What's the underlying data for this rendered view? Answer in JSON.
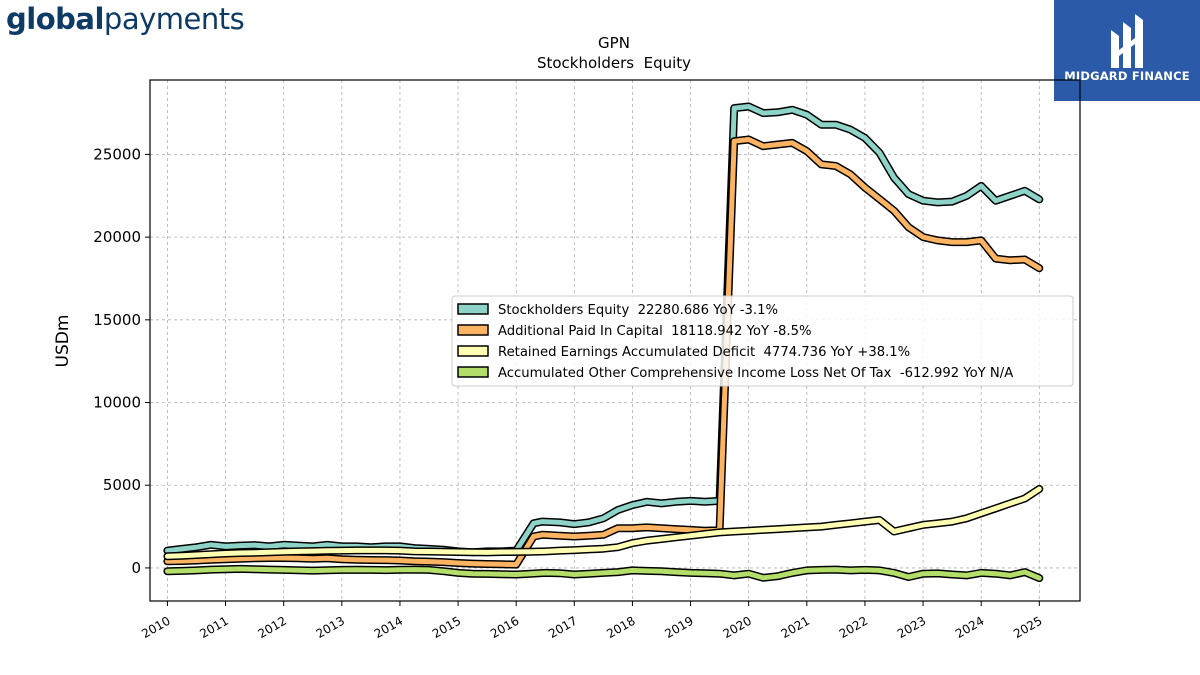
{
  "branding": {
    "company_logo_bold": "global",
    "company_logo_light": "payments",
    "provider_name": "MIDGARD FINANCE"
  },
  "chart_data": {
    "type": "line",
    "title": "GPN",
    "subtitle": "Stockholders  Equity",
    "xlabel": "",
    "ylabel": "USDm",
    "xlim": [
      2009.7,
      2025.7
    ],
    "ylim": [
      -2000,
      29500
    ],
    "xticks": [
      2010,
      2011,
      2012,
      2013,
      2014,
      2015,
      2016,
      2017,
      2018,
      2019,
      2020,
      2021,
      2022,
      2023,
      2024,
      2025
    ],
    "yticks": [
      0,
      5000,
      10000,
      15000,
      20000,
      25000
    ],
    "grid": true,
    "legend_position": "center-right",
    "series": [
      {
        "name": "Stockholders Equity",
        "legend": "Stockholders Equity  22280.686 YoY -3.1%",
        "color": "#8dd3c7",
        "x": [
          2010.0,
          2010.25,
          2010.5,
          2010.75,
          2011.0,
          2011.25,
          2011.5,
          2011.75,
          2012.0,
          2012.25,
          2012.5,
          2012.75,
          2013.0,
          2013.25,
          2013.5,
          2013.75,
          2014.0,
          2014.25,
          2014.5,
          2014.75,
          2015.0,
          2015.25,
          2015.5,
          2015.75,
          2016.0,
          2016.3,
          2016.45,
          2016.75,
          2017.0,
          2017.25,
          2017.5,
          2017.75,
          2018.0,
          2018.25,
          2018.5,
          2018.75,
          2019.0,
          2019.25,
          2019.5,
          2019.75,
          2020.0,
          2020.25,
          2020.5,
          2020.75,
          2021.0,
          2021.25,
          2021.5,
          2021.75,
          2022.0,
          2022.25,
          2022.5,
          2022.75,
          2023.0,
          2023.25,
          2023.5,
          2023.75,
          2024.0,
          2024.25,
          2024.5,
          2024.75,
          2025.0
        ],
        "values": [
          1050,
          1150,
          1250,
          1400,
          1300,
          1350,
          1380,
          1300,
          1400,
          1350,
          1300,
          1400,
          1300,
          1300,
          1250,
          1300,
          1300,
          1200,
          1150,
          1100,
          1000,
          950,
          1000,
          1000,
          1050,
          2700,
          2800,
          2750,
          2650,
          2750,
          3000,
          3500,
          3800,
          4000,
          3900,
          4000,
          4050,
          4000,
          4050,
          27800,
          27900,
          27500,
          27550,
          27700,
          27400,
          26800,
          26800,
          26500,
          26000,
          25100,
          23600,
          22600,
          22200,
          22100,
          22150,
          22500,
          23100,
          22200,
          22500,
          22800,
          22280
        ]
      },
      {
        "name": "Additional Paid In Capital",
        "legend": "Additional Paid In Capital  18118.942 YoY -8.5%",
        "color": "#fdb462",
        "x": [
          2010.0,
          2010.25,
          2010.5,
          2010.75,
          2011.0,
          2011.25,
          2011.5,
          2011.75,
          2012.0,
          2012.25,
          2012.5,
          2012.75,
          2013.0,
          2013.25,
          2013.5,
          2013.75,
          2014.0,
          2014.25,
          2014.5,
          2014.75,
          2015.0,
          2015.25,
          2015.5,
          2015.75,
          2016.0,
          2016.3,
          2016.45,
          2016.75,
          2017.0,
          2017.25,
          2017.5,
          2017.75,
          2018.0,
          2018.25,
          2018.5,
          2018.75,
          2019.0,
          2019.25,
          2019.5,
          2019.75,
          2020.0,
          2020.25,
          2020.5,
          2020.75,
          2021.0,
          2021.25,
          2021.5,
          2021.75,
          2022.0,
          2022.25,
          2022.5,
          2022.75,
          2023.0,
          2023.25,
          2023.5,
          2023.75,
          2024.0,
          2024.25,
          2024.5,
          2024.75,
          2025.0
        ],
        "values": [
          400,
          420,
          450,
          500,
          520,
          550,
          580,
          600,
          600,
          580,
          560,
          580,
          520,
          500,
          480,
          470,
          450,
          400,
          380,
          350,
          300,
          260,
          240,
          220,
          200,
          1900,
          2000,
          1950,
          1900,
          1950,
          2000,
          2400,
          2400,
          2450,
          2400,
          2350,
          2300,
          2250,
          2300,
          25800,
          25900,
          25500,
          25600,
          25700,
          25200,
          24400,
          24300,
          23800,
          23000,
          22300,
          21600,
          20600,
          20000,
          19800,
          19700,
          19700,
          19800,
          18700,
          18600,
          18650,
          18119
        ]
      },
      {
        "name": "Retained Earnings Accumulated Deficit",
        "legend": "Retained Earnings Accumulated Deficit  4774.736 YoY +38.1%",
        "color": "#ffffb3",
        "x": [
          2010.0,
          2010.25,
          2010.5,
          2010.75,
          2011.0,
          2011.25,
          2011.5,
          2011.75,
          2012.0,
          2012.25,
          2012.5,
          2012.75,
          2013.0,
          2013.25,
          2013.5,
          2013.75,
          2014.0,
          2014.25,
          2014.5,
          2014.75,
          2015.0,
          2015.25,
          2015.5,
          2015.75,
          2016.0,
          2016.25,
          2016.5,
          2016.75,
          2017.0,
          2017.25,
          2017.5,
          2017.75,
          2018.0,
          2018.25,
          2018.5,
          2018.75,
          2019.0,
          2019.25,
          2019.5,
          2019.75,
          2020.0,
          2020.25,
          2020.5,
          2020.75,
          2021.0,
          2021.25,
          2021.5,
          2021.75,
          2022.0,
          2022.25,
          2022.5,
          2022.75,
          2023.0,
          2023.25,
          2023.5,
          2023.75,
          2024.0,
          2024.25,
          2024.5,
          2024.75,
          2025.0
        ],
        "values": [
          700,
          730,
          780,
          830,
          870,
          900,
          920,
          950,
          980,
          1000,
          1020,
          1040,
          1050,
          1060,
          1060,
          1060,
          1050,
          1000,
          990,
          980,
          960,
          950,
          940,
          960,
          970,
          980,
          1000,
          1050,
          1080,
          1120,
          1160,
          1250,
          1500,
          1650,
          1750,
          1850,
          1950,
          2050,
          2150,
          2200,
          2250,
          2300,
          2350,
          2400,
          2450,
          2500,
          2600,
          2700,
          2800,
          2900,
          2200,
          2400,
          2600,
          2700,
          2800,
          3000,
          3300,
          3600,
          3900,
          4200,
          4775
        ]
      },
      {
        "name": "Accumulated Other Comprehensive Income Loss Net Of Tax",
        "legend": "Accumulated Other Comprehensive Income Loss Net Of Tax  -612.992 YoY N/A",
        "color": "#b3de69",
        "x": [
          2010.0,
          2010.25,
          2010.5,
          2010.75,
          2011.0,
          2011.25,
          2011.5,
          2011.75,
          2012.0,
          2012.25,
          2012.5,
          2012.75,
          2013.0,
          2013.25,
          2013.5,
          2013.75,
          2014.0,
          2014.25,
          2014.5,
          2014.75,
          2015.0,
          2015.25,
          2015.5,
          2015.75,
          2016.0,
          2016.25,
          2016.5,
          2016.75,
          2017.0,
          2017.25,
          2017.5,
          2017.75,
          2018.0,
          2018.25,
          2018.5,
          2018.75,
          2019.0,
          2019.25,
          2019.5,
          2019.75,
          2020.0,
          2020.25,
          2020.5,
          2020.75,
          2021.0,
          2021.25,
          2021.5,
          2021.75,
          2022.0,
          2022.25,
          2022.5,
          2022.75,
          2023.0,
          2023.25,
          2023.5,
          2023.75,
          2024.0,
          2024.25,
          2024.5,
          2024.75,
          2025.0
        ],
        "values": [
          -200,
          -180,
          -150,
          -100,
          -80,
          -60,
          -80,
          -100,
          -120,
          -140,
          -160,
          -140,
          -120,
          -110,
          -120,
          -130,
          -110,
          -100,
          -120,
          -200,
          -300,
          -350,
          -360,
          -380,
          -400,
          -350,
          -300,
          -320,
          -400,
          -350,
          -300,
          -250,
          -150,
          -180,
          -200,
          -250,
          -300,
          -320,
          -350,
          -450,
          -350,
          -600,
          -500,
          -300,
          -150,
          -120,
          -100,
          -150,
          -120,
          -150,
          -300,
          -550,
          -350,
          -330,
          -400,
          -450,
          -300,
          -350,
          -450,
          -250,
          -613
        ]
      }
    ]
  }
}
